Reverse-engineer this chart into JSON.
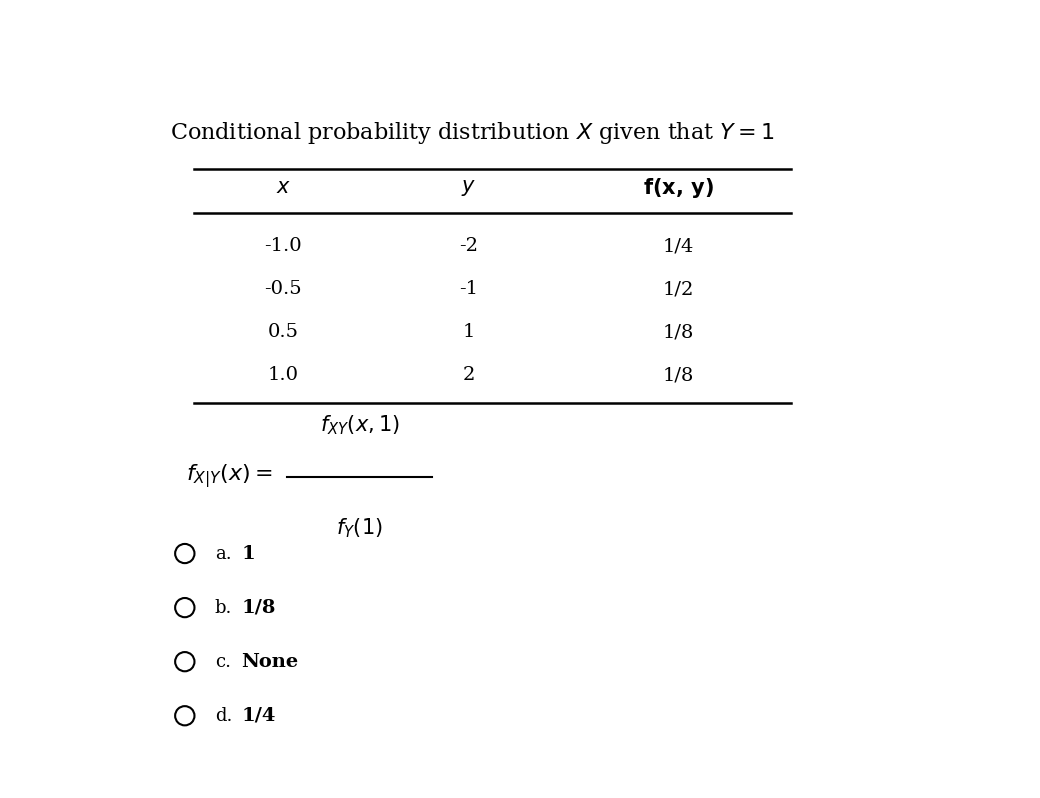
{
  "title": "Conditional probability distribution $X$ given that $Y = 1$",
  "title_fontsize": 16,
  "table_headers": [
    "$x$",
    "$y$",
    "$\\mathbf{f(x, y)}$"
  ],
  "table_rows": [
    [
      "-1.0",
      "-2",
      "1/4"
    ],
    [
      "-0.5",
      "-1",
      "1/2"
    ],
    [
      "0.5",
      "1",
      "1/8"
    ],
    [
      "1.0",
      "2",
      "1/8"
    ]
  ],
  "options": [
    [
      "a.",
      "1"
    ],
    [
      "b.",
      "1/8"
    ],
    [
      "c.",
      "None"
    ],
    [
      "d.",
      "1/4"
    ]
  ],
  "bg_color": "#ffffff",
  "text_color": "#000000"
}
